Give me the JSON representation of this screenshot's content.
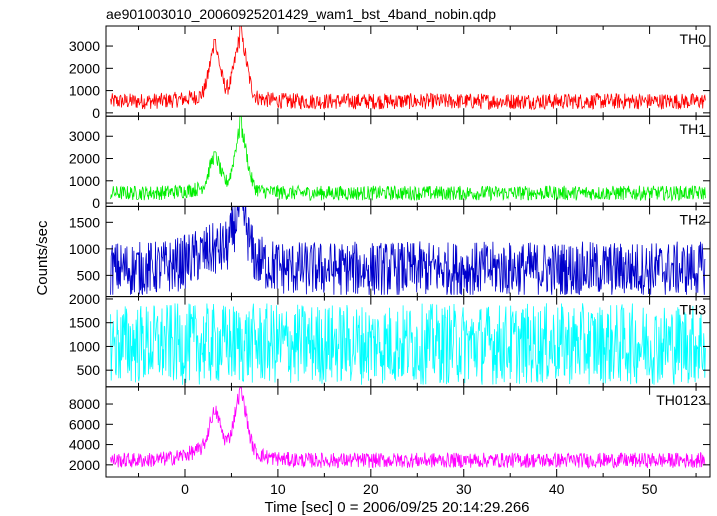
{
  "chart_data": {
    "type": "line",
    "title": "ae901003010_20060925201429_wam1_bst_4band_nobin.qdp",
    "xlabel": "Time [sec] 0 = 2006/09/25 20:14:29.266",
    "ylabel": "Counts/sec",
    "xlim": [
      -8.5,
      56.5
    ],
    "xticks": [
      0,
      10,
      20,
      30,
      40,
      50
    ],
    "grid": false,
    "panels": [
      {
        "name": "TH0",
        "color": "#ff0000",
        "ylim": [
          -150,
          3900
        ],
        "yticks": [
          0,
          1000,
          2000,
          3000
        ],
        "baseline": 520,
        "noise": 360,
        "features": [
          {
            "x": 3.2,
            "peak": 3300
          },
          {
            "x": 6.0,
            "peak": 3900
          }
        ]
      },
      {
        "name": "TH1",
        "color": "#00ee00",
        "ylim": [
          -150,
          3900
        ],
        "yticks": [
          0,
          1000,
          2000,
          3000
        ],
        "baseline": 450,
        "noise": 330,
        "features": [
          {
            "x": 3.2,
            "peak": 2300
          },
          {
            "x": 6.0,
            "peak": 3900
          }
        ]
      },
      {
        "name": "TH2",
        "color": "#0000cc",
        "ylim": [
          100,
          1800
        ],
        "yticks": [
          500,
          1000,
          1500
        ],
        "baseline": 620,
        "noise": 520,
        "features": [
          {
            "x": 6.0,
            "peak": 1800
          }
        ]
      },
      {
        "name": "TH3",
        "color": "#00ffff",
        "ylim": [
          150,
          2050
        ],
        "yticks": [
          500,
          1000,
          1500,
          2000
        ],
        "baseline": 1050,
        "noise": 860,
        "features": []
      },
      {
        "name": "TH0123",
        "color": "#ff00ff",
        "ylim": [
          800,
          9700
        ],
        "yticks": [
          2000,
          4000,
          6000,
          8000
        ],
        "baseline": 2450,
        "noise": 750,
        "features": [
          {
            "x": 3.2,
            "peak": 7000
          },
          {
            "x": 6.0,
            "peak": 9600
          }
        ]
      }
    ]
  }
}
